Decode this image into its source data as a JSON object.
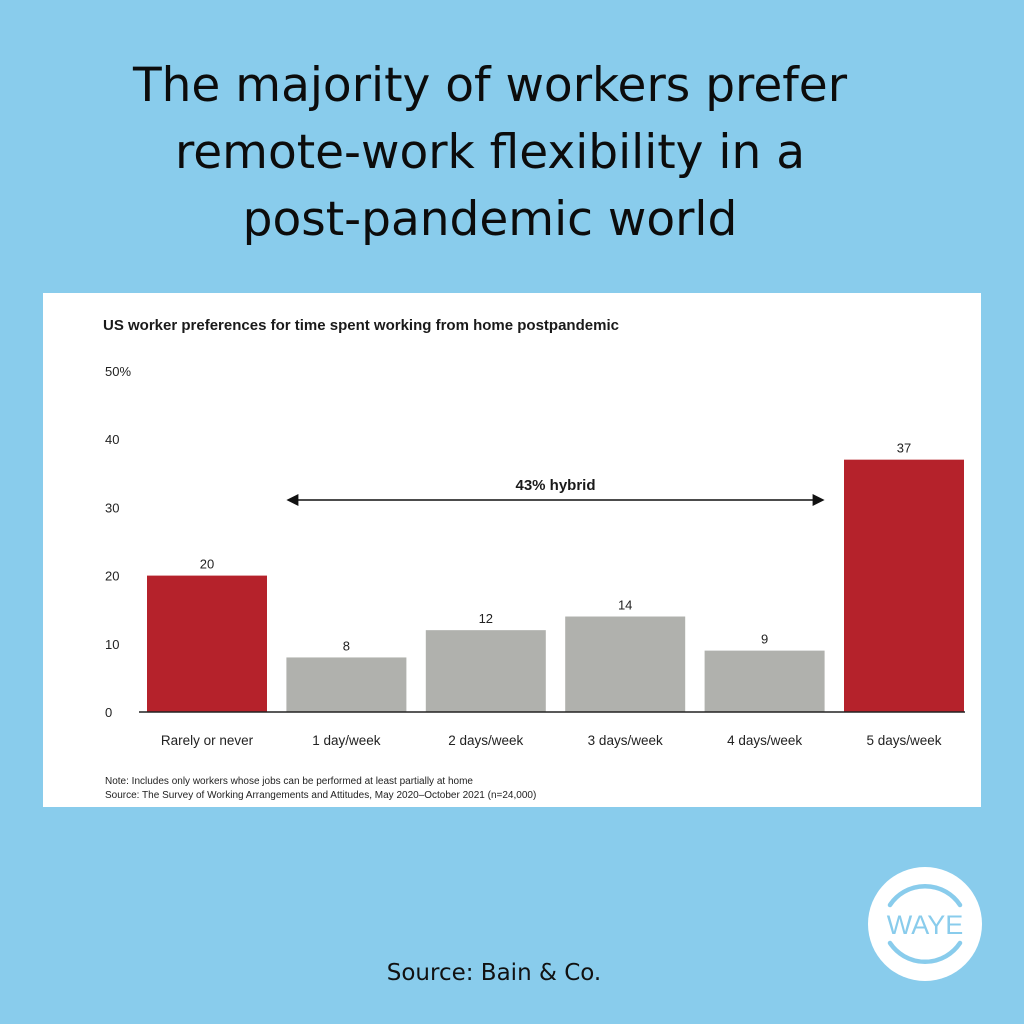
{
  "headline": {
    "lines": [
      "The majority of workers prefer",
      "remote-work flexibility in a",
      "post-pandemic world"
    ]
  },
  "chart_data": {
    "type": "bar",
    "title": "US worker preferences for time spent working from home postpandemic",
    "categories": [
      "Rarely or never",
      "1 day/week",
      "2 days/week",
      "3 days/week",
      "4 days/week",
      "5 days/week"
    ],
    "values": [
      20,
      8,
      12,
      14,
      9,
      37
    ],
    "bar_colors": [
      "#b5222b",
      "#b0b1ad",
      "#b0b1ad",
      "#b0b1ad",
      "#b0b1ad",
      "#b5222b"
    ],
    "ylim": [
      0,
      50
    ],
    "yticks": [
      "0",
      "10",
      "20",
      "30",
      "40",
      "50%"
    ],
    "ytick_values": [
      0,
      10,
      20,
      30,
      40,
      50
    ],
    "xlabel": "",
    "ylabel": "",
    "grid": false,
    "annotation": {
      "text": "43% hybrid",
      "from_category": "1 day/week",
      "to_category": "4 days/week"
    },
    "note": "Note: Includes only workers whose jobs can be performed at least partially at home",
    "source": "Source: The Survey of Working Arrangements and Attitudes, May 2020–October 2021 (n=24,000)"
  },
  "footer": {
    "source": "Source: Bain & Co."
  },
  "logo": {
    "text": "WAYE",
    "color": "#89ccec"
  }
}
